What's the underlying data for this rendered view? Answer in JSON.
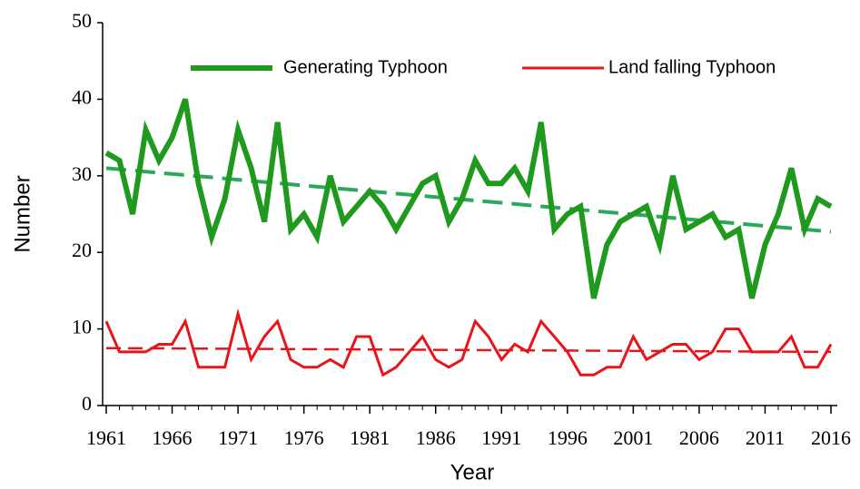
{
  "chart_data": {
    "type": "line",
    "xlabel": "Year",
    "ylabel": "Number",
    "x": [
      1961,
      1962,
      1963,
      1964,
      1965,
      1966,
      1967,
      1968,
      1969,
      1970,
      1971,
      1972,
      1973,
      1974,
      1975,
      1976,
      1977,
      1978,
      1979,
      1980,
      1981,
      1982,
      1983,
      1984,
      1985,
      1986,
      1987,
      1988,
      1989,
      1990,
      1991,
      1992,
      1993,
      1994,
      1995,
      1996,
      1997,
      1998,
      1999,
      2000,
      2001,
      2002,
      2003,
      2004,
      2005,
      2006,
      2007,
      2008,
      2009,
      2010,
      2011,
      2012,
      2013,
      2014,
      2015,
      2016
    ],
    "series": [
      {
        "name": "Generating Typhoon",
        "color": "#1f9a1f",
        "width": 6,
        "trend_color": "#2ba85a",
        "values": [
          33,
          32,
          25,
          36,
          32,
          35,
          40,
          29,
          22,
          27,
          36,
          31,
          24,
          37,
          23,
          25,
          22,
          30,
          24,
          26,
          28,
          26,
          23,
          26,
          29,
          30,
          24,
          27,
          32,
          29,
          29,
          31,
          28,
          37,
          23,
          25,
          26,
          14,
          21,
          24,
          25,
          26,
          21,
          30,
          23,
          24,
          25,
          22,
          23,
          14,
          21,
          25,
          31,
          23,
          27,
          26
        ],
        "trend": [
          31,
          22.7
        ]
      },
      {
        "name": "Land falling Typhoon",
        "color": "#e8141a",
        "width": 3,
        "trend_color": "#e8141a",
        "values": [
          11,
          7,
          7,
          7,
          8,
          8,
          11,
          5,
          5,
          5,
          12,
          6,
          9,
          11,
          6,
          5,
          5,
          6,
          5,
          9,
          9,
          4,
          5,
          7,
          9,
          6,
          5,
          6,
          11,
          9,
          6,
          8,
          7,
          11,
          9,
          7,
          4,
          4,
          5,
          5,
          9,
          6,
          7,
          8,
          8,
          6,
          7,
          10,
          10,
          7,
          7,
          7,
          9,
          5,
          5,
          8
        ],
        "trend": [
          7.5,
          7
        ]
      }
    ],
    "xlim": [
      1961,
      2016
    ],
    "xticks": [
      1961,
      1966,
      1971,
      1976,
      1981,
      1986,
      1991,
      1996,
      2001,
      2006,
      2011,
      2016
    ],
    "ylim": [
      0,
      50
    ],
    "yticks": [
      0,
      10,
      20,
      30,
      40,
      50
    ],
    "legend": "top-right"
  }
}
